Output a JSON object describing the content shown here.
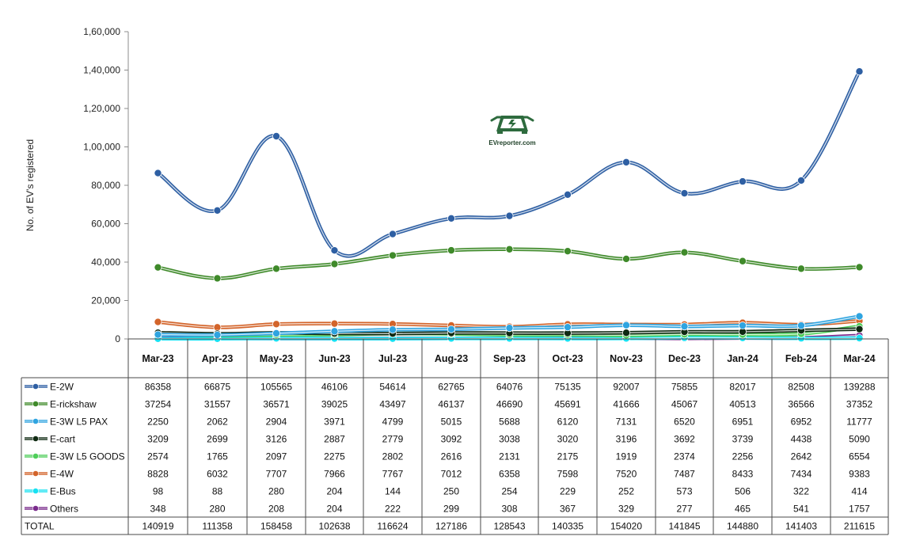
{
  "logo": {
    "text": "EVreporter.com"
  },
  "chart_data": {
    "type": "line",
    "ylabel": "No. of EV's registered",
    "ylim": [
      0,
      160000
    ],
    "yticks": [
      "0",
      "20,000",
      "40,000",
      "60,000",
      "80,000",
      "1,00,000",
      "1,20,000",
      "1,40,000",
      "1,60,000"
    ],
    "categories": [
      "Mar-23",
      "Apr-23",
      "May-23",
      "Jun-23",
      "Jul-23",
      "Aug-23",
      "Sep-23",
      "Oct-23",
      "Nov-23",
      "Dec-23",
      "Jan-24",
      "Feb-24",
      "Mar-24"
    ],
    "series": [
      {
        "name": "E-2W",
        "color": "#2e5fa3",
        "values": [
          86358,
          66875,
          105565,
          46106,
          54614,
          62765,
          64076,
          75135,
          92007,
          75855,
          82017,
          82508,
          139288
        ]
      },
      {
        "name": "E-rickshaw",
        "color": "#3f8a2a",
        "values": [
          37254,
          31557,
          36571,
          39025,
          43497,
          46137,
          46690,
          45691,
          41666,
          45067,
          40513,
          36566,
          37352
        ]
      },
      {
        "name": "E-3W L5 PAX",
        "color": "#2fa4e0",
        "values": [
          2250,
          2062,
          2904,
          3971,
          4799,
          5015,
          5688,
          6120,
          7131,
          6520,
          6951,
          6952,
          11777
        ]
      },
      {
        "name": "E-cart",
        "color": "#0f2a12",
        "values": [
          3209,
          2699,
          3126,
          2887,
          2779,
          3092,
          3038,
          3020,
          3196,
          3692,
          3739,
          4438,
          5090
        ]
      },
      {
        "name": "E-3W L5 GOODS",
        "color": "#4fce5a",
        "values": [
          2574,
          1765,
          2097,
          2275,
          2802,
          2616,
          2131,
          2175,
          1919,
          2374,
          2256,
          2642,
          6554
        ]
      },
      {
        "name": "E-4W",
        "color": "#d3642a",
        "values": [
          8828,
          6032,
          7707,
          7966,
          7767,
          7012,
          6358,
          7598,
          7520,
          7487,
          8433,
          7434,
          9383
        ]
      },
      {
        "name": "E-Bus",
        "color": "#17e1f2",
        "values": [
          98,
          88,
          280,
          204,
          144,
          250,
          254,
          229,
          252,
          573,
          506,
          322,
          414
        ]
      },
      {
        "name": "Others",
        "color": "#7a2b8c",
        "values": [
          348,
          280,
          208,
          204,
          222,
          299,
          308,
          367,
          329,
          277,
          465,
          541,
          1757
        ]
      }
    ],
    "total": {
      "label": "TOTAL",
      "values": [
        140919,
        111358,
        158458,
        102638,
        116624,
        127186,
        128543,
        140335,
        154020,
        141845,
        144880,
        141403,
        211615
      ]
    }
  }
}
